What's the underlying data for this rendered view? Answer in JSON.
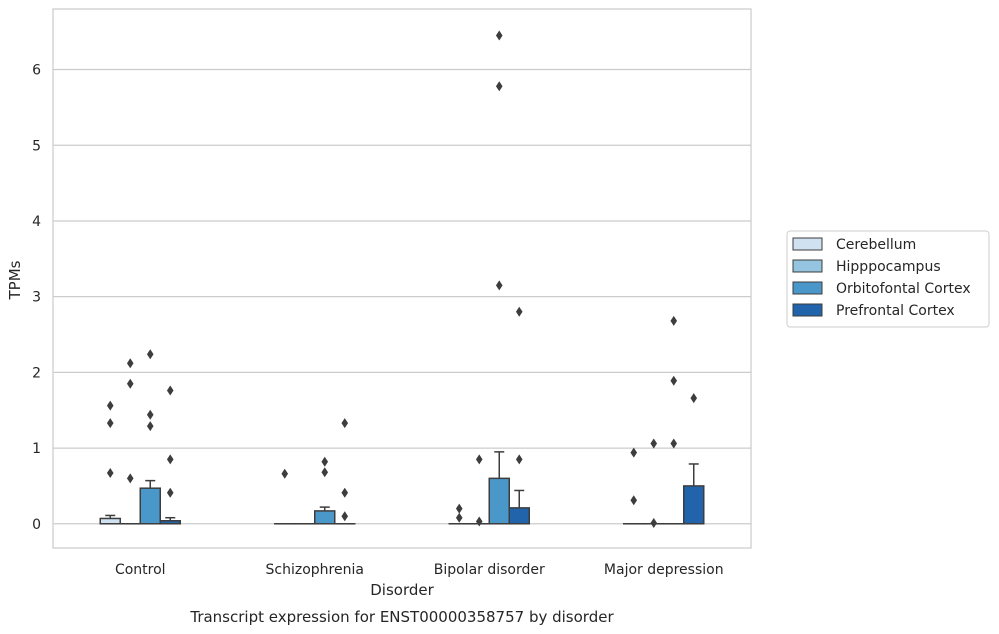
{
  "chart_data": {
    "type": "box",
    "title": "Transcript expression for ENST00000358757 by disorder",
    "xlabel": "Disorder",
    "ylabel": "TPMs",
    "categories": [
      "Control",
      "Schizophrenia",
      "Bipolar disorder",
      "Major depression"
    ],
    "ylim": [
      -0.32,
      6.8
    ],
    "yticks": [
      0,
      1,
      2,
      3,
      4,
      5,
      6
    ],
    "grid": true,
    "legend_position": "right",
    "series": [
      {
        "name": "Cerebellum",
        "color": "#d0e1f2",
        "boxes": [
          {
            "q1": 0.0,
            "median": 0.0,
            "q3": 0.07,
            "whisker_low": 0.0,
            "whisker_high": 0.11,
            "outliers": [
              0.67,
              1.33,
              1.56
            ]
          },
          {
            "q1": 0.0,
            "median": 0.0,
            "q3": 0.0,
            "whisker_low": 0.0,
            "whisker_high": 0.0,
            "outliers": [
              0.66
            ]
          },
          {
            "q1": 0.0,
            "median": 0.0,
            "q3": 0.0,
            "whisker_low": 0.0,
            "whisker_high": 0.0,
            "outliers": [
              0.08,
              0.2
            ]
          },
          {
            "q1": 0.0,
            "median": 0.0,
            "q3": 0.0,
            "whisker_low": 0.0,
            "whisker_high": 0.0,
            "outliers": [
              0.31,
              0.94
            ]
          }
        ]
      },
      {
        "name": "Hipppocampus",
        "color": "#94c4df",
        "boxes": [
          {
            "q1": 0.0,
            "median": 0.0,
            "q3": 0.0,
            "whisker_low": 0.0,
            "whisker_high": 0.0,
            "outliers": [
              0.6,
              1.85,
              2.12
            ]
          },
          {
            "q1": 0.0,
            "median": 0.0,
            "q3": 0.0,
            "whisker_low": 0.0,
            "whisker_high": 0.0,
            "outliers": []
          },
          {
            "q1": 0.0,
            "median": 0.0,
            "q3": 0.0,
            "whisker_low": 0.0,
            "whisker_high": 0.0,
            "outliers": [
              0.03,
              0.85
            ]
          },
          {
            "q1": 0.0,
            "median": 0.0,
            "q3": 0.0,
            "whisker_low": 0.0,
            "whisker_high": 0.0,
            "outliers": [
              0.01,
              1.06
            ]
          }
        ]
      },
      {
        "name": "Orbitofontal Cortex",
        "color": "#4a98c9",
        "boxes": [
          {
            "q1": 0.0,
            "median": 0.0,
            "q3": 0.47,
            "whisker_low": 0.0,
            "whisker_high": 0.57,
            "outliers": [
              1.29,
              1.44,
              2.24
            ]
          },
          {
            "q1": 0.0,
            "median": 0.0,
            "q3": 0.17,
            "whisker_low": 0.0,
            "whisker_high": 0.22,
            "outliers": [
              0.68,
              0.82
            ]
          },
          {
            "q1": 0.0,
            "median": 0.0,
            "q3": 0.6,
            "whisker_low": 0.0,
            "whisker_high": 0.95,
            "outliers": [
              3.15,
              5.78,
              6.45
            ]
          },
          {
            "q1": 0.0,
            "median": 0.0,
            "q3": 0.0,
            "whisker_low": 0.0,
            "whisker_high": 0.0,
            "outliers": [
              1.06,
              1.89,
              2.68
            ]
          }
        ]
      },
      {
        "name": "Prefrontal Cortex",
        "color": "#2164ab",
        "boxes": [
          {
            "q1": 0.0,
            "median": 0.0,
            "q3": 0.04,
            "whisker_low": 0.0,
            "whisker_high": 0.08,
            "outliers": [
              0.41,
              0.85,
              1.76
            ]
          },
          {
            "q1": 0.0,
            "median": 0.0,
            "q3": 0.0,
            "whisker_low": 0.0,
            "whisker_high": 0.0,
            "outliers": [
              0.1,
              0.41,
              1.33
            ]
          },
          {
            "q1": 0.0,
            "median": 0.0,
            "q3": 0.21,
            "whisker_low": 0.0,
            "whisker_high": 0.44,
            "outliers": [
              0.85,
              2.8
            ]
          },
          {
            "q1": 0.0,
            "median": 0.0,
            "q3": 0.5,
            "whisker_low": 0.0,
            "whisker_high": 0.79,
            "outliers": [
              1.66
            ]
          }
        ]
      }
    ]
  }
}
